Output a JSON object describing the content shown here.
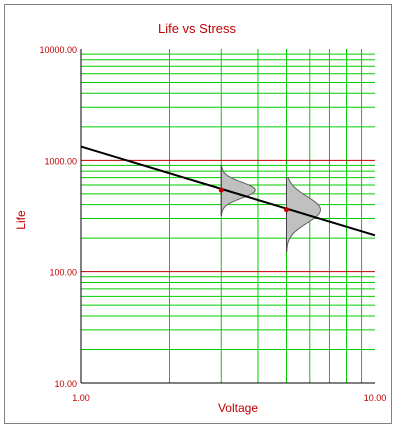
{
  "chart_data": {
    "type": "scatter",
    "title": "Life vs Stress",
    "xlabel": "Voltage",
    "ylabel": "Life",
    "x_scale": "log",
    "y_scale": "log",
    "xlim": [
      1,
      10
    ],
    "ylim": [
      10,
      10000
    ],
    "x_ticks": [
      {
        "value": 1,
        "label": "1.00"
      },
      {
        "value": 10,
        "label": "10.00"
      }
    ],
    "y_ticks": [
      {
        "value": 10000,
        "label": "10000.00"
      },
      {
        "value": 1000,
        "label": "1000.00"
      },
      {
        "value": 100,
        "label": "100.00"
      },
      {
        "value": 10,
        "label": "10.00"
      }
    ],
    "grid": true,
    "life_stress_line": {
      "x": [
        1,
        10
      ],
      "y": [
        1330,
        212
      ]
    },
    "points": [
      {
        "x": 3,
        "y": 540
      },
      {
        "x": 5,
        "y": 360
      }
    ],
    "distributions": [
      {
        "stress": 3,
        "median": 540,
        "y_min": 320,
        "y_max": 900
      },
      {
        "stress": 5,
        "median": 360,
        "y_min": 150,
        "y_max": 700
      }
    ],
    "colors": {
      "grid_minor": "#00cc00",
      "grid_major": "#c00000",
      "line": "#000000",
      "points": "#c00000",
      "pdf_fill": "#c0c0c0",
      "text": "#c00000"
    }
  }
}
